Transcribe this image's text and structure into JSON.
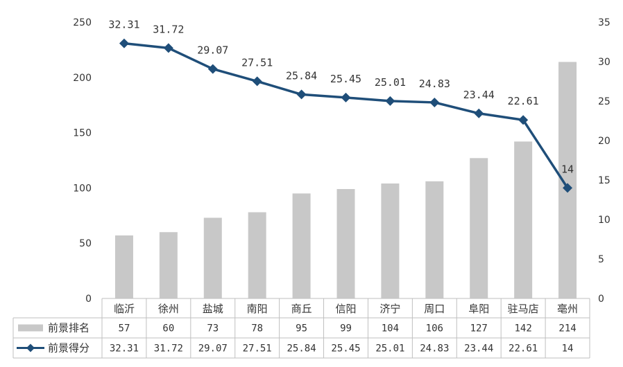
{
  "chart_data": {
    "type": "bar",
    "categories": [
      "临沂",
      "徐州",
      "盐城",
      "南阳",
      "商丘",
      "信阳",
      "济宁",
      "周口",
      "阜阳",
      "驻马店",
      "亳州"
    ],
    "ylim": [
      0,
      250
    ],
    "y2lim": [
      0,
      35
    ],
    "y_ticks": [
      "0",
      "50",
      "100",
      "150",
      "200",
      "250"
    ],
    "y2_ticks": [
      "0",
      "5",
      "10",
      "15",
      "20",
      "25",
      "30",
      "35"
    ],
    "legend": "data-table",
    "grid": false,
    "series": [
      {
        "name": "前景排名",
        "type": "bar",
        "axis": "left",
        "color": "#c8c8c8",
        "values": [
          57,
          60,
          73,
          78,
          95,
          99,
          104,
          106,
          127,
          142,
          214
        ],
        "labels": [
          "57",
          "60",
          "73",
          "78",
          "95",
          "99",
          "104",
          "106",
          "127",
          "142",
          "214"
        ]
      },
      {
        "name": "前景得分",
        "type": "line",
        "axis": "right",
        "color": "#1f4e79",
        "marker": "diamond",
        "values": [
          32.31,
          31.72,
          29.07,
          27.51,
          25.84,
          25.45,
          25.01,
          24.83,
          23.44,
          22.61,
          14
        ],
        "labels": [
          "32.31",
          "31.72",
          "29.07",
          "27.51",
          "25.84",
          "25.45",
          "25.01",
          "24.83",
          "23.44",
          "22.61",
          "14"
        ]
      }
    ]
  }
}
